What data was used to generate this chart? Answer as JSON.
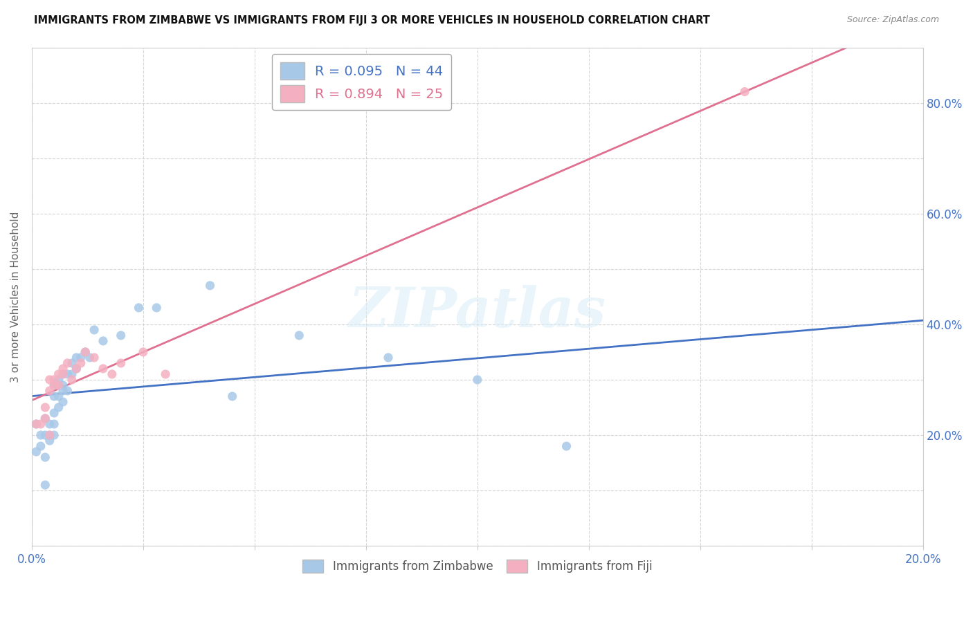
{
  "title": "IMMIGRANTS FROM ZIMBABWE VS IMMIGRANTS FROM FIJI 3 OR MORE VEHICLES IN HOUSEHOLD CORRELATION CHART",
  "source": "Source: ZipAtlas.com",
  "ylabel": "3 or more Vehicles in Household",
  "xlim": [
    0.0,
    0.2
  ],
  "ylim": [
    0.0,
    0.9
  ],
  "xtick_positions": [
    0.0,
    0.025,
    0.05,
    0.075,
    0.1,
    0.125,
    0.15,
    0.175,
    0.2
  ],
  "xtick_labels": [
    "0.0%",
    "",
    "",
    "",
    "",
    "",
    "",
    "",
    "20.0%"
  ],
  "ytick_positions": [
    0.0,
    0.1,
    0.2,
    0.3,
    0.4,
    0.5,
    0.6,
    0.7,
    0.8,
    0.9
  ],
  "ytick_labels_right": [
    "",
    "",
    "20.0%",
    "",
    "40.0%",
    "",
    "60.0%",
    "",
    "80.0%",
    ""
  ],
  "zimbabwe_color": "#a8c8e8",
  "fiji_color": "#f4b0c0",
  "zimbabwe_line_color": "#4472c4",
  "fiji_line_color": "#e07090",
  "R_zimbabwe": 0.095,
  "N_zimbabwe": 44,
  "R_fiji": 0.894,
  "N_fiji": 25,
  "watermark_text": "ZIPatlas",
  "zimbabwe_x": [
    0.001,
    0.001,
    0.002,
    0.002,
    0.003,
    0.003,
    0.003,
    0.004,
    0.004,
    0.004,
    0.005,
    0.005,
    0.005,
    0.005,
    0.005,
    0.006,
    0.006,
    0.006,
    0.006,
    0.007,
    0.007,
    0.007,
    0.007,
    0.008,
    0.008,
    0.009,
    0.009,
    0.01,
    0.01,
    0.011,
    0.012,
    0.013,
    0.014,
    0.016,
    0.02,
    0.024,
    0.028,
    0.04,
    0.045,
    0.06,
    0.08,
    0.1,
    0.12,
    0.003
  ],
  "zimbabwe_y": [
    0.22,
    0.17,
    0.2,
    0.18,
    0.23,
    0.2,
    0.16,
    0.22,
    0.2,
    0.19,
    0.29,
    0.27,
    0.24,
    0.22,
    0.2,
    0.3,
    0.29,
    0.27,
    0.25,
    0.31,
    0.29,
    0.28,
    0.26,
    0.31,
    0.28,
    0.33,
    0.31,
    0.34,
    0.32,
    0.34,
    0.35,
    0.34,
    0.39,
    0.37,
    0.38,
    0.43,
    0.43,
    0.47,
    0.27,
    0.38,
    0.34,
    0.3,
    0.18,
    0.11
  ],
  "fiji_x": [
    0.001,
    0.002,
    0.003,
    0.003,
    0.004,
    0.004,
    0.005,
    0.005,
    0.006,
    0.006,
    0.007,
    0.007,
    0.008,
    0.009,
    0.01,
    0.011,
    0.012,
    0.014,
    0.016,
    0.018,
    0.02,
    0.025,
    0.03,
    0.16,
    0.004
  ],
  "fiji_y": [
    0.22,
    0.22,
    0.25,
    0.23,
    0.3,
    0.28,
    0.3,
    0.29,
    0.31,
    0.29,
    0.32,
    0.31,
    0.33,
    0.3,
    0.32,
    0.33,
    0.35,
    0.34,
    0.32,
    0.31,
    0.33,
    0.35,
    0.31,
    0.82,
    0.2
  ]
}
